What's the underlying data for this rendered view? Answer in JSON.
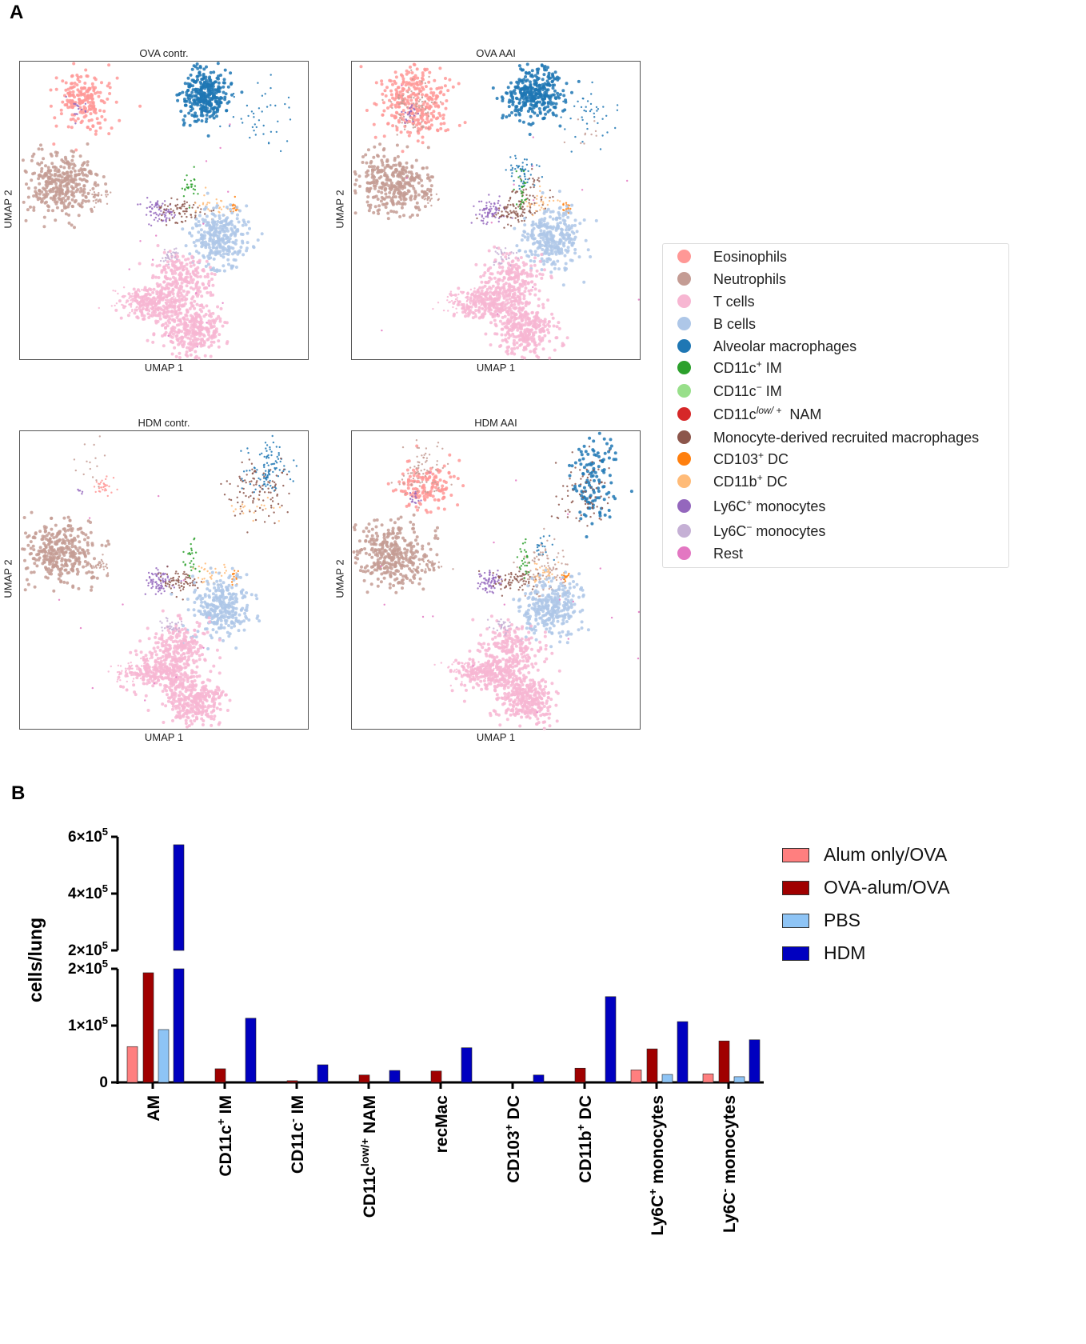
{
  "panel_a_label": "A",
  "panel_b_label": "B",
  "umap": {
    "xlabel": "UMAP 1",
    "ylabel": "UMAP 2",
    "panels": [
      {
        "title": "OVA contr."
      },
      {
        "title": "OVA AAI"
      },
      {
        "title": "HDM contr."
      },
      {
        "title": "HDM AAI"
      }
    ]
  },
  "legend_a": [
    {
      "base": "Eosinophils",
      "sup": "",
      "rest": "",
      "color": "#ff9896"
    },
    {
      "base": "Neutrophils",
      "sup": "",
      "rest": "",
      "color": "#c49c94"
    },
    {
      "base": "T cells",
      "sup": "",
      "rest": "",
      "color": "#f7b6d2"
    },
    {
      "base": "B cells",
      "sup": "",
      "rest": "",
      "color": "#aec7e8"
    },
    {
      "base": "Alveolar macrophages",
      "sup": "",
      "rest": "",
      "color": "#1f77b4"
    },
    {
      "base": "CD11c",
      "sup": "+",
      "rest": " IM",
      "color": "#2ca02c"
    },
    {
      "base": "CD11c",
      "sup": "−",
      "rest": " IM",
      "color": "#98df8a"
    },
    {
      "base": "CD11c",
      "sup": "low/ +",
      "rest": "  NAM",
      "color": "#d62728"
    },
    {
      "base": "Monocyte-derived recruited macrophages",
      "sup": "",
      "rest": "",
      "color": "#8c564b"
    },
    {
      "base": "CD103",
      "sup": "+",
      "rest": " DC",
      "color": "#ff7f0e"
    },
    {
      "base": "CD11b",
      "sup": "+",
      "rest": " DC",
      "color": "#ffbb78"
    },
    {
      "base": "Ly6C",
      "sup": "+",
      "rest": " monocytes",
      "color": "#9467bd"
    },
    {
      "base": "Ly6C",
      "sup": "−",
      "rest": " monocytes",
      "color": "#c5b0d5"
    },
    {
      "base": "Rest",
      "sup": "",
      "rest": "",
      "color": "#e377c2"
    }
  ],
  "chart_data": {
    "type": "bar",
    "ylabel": "cells/lung",
    "y_axis_break": true,
    "ylim_lower": [
      0,
      200000
    ],
    "ylim_upper": [
      200000,
      600000
    ],
    "yticks_lower": [
      {
        "v": 0,
        "base": "0",
        "exp": ""
      },
      {
        "v": 100000,
        "base": "1×10",
        "exp": "5"
      },
      {
        "v": 200000,
        "base": "2×10",
        "exp": "5"
      }
    ],
    "yticks_upper": [
      {
        "v": 200000,
        "base": "2×10",
        "exp": "5"
      },
      {
        "v": 400000,
        "base": "4×10",
        "exp": "5"
      },
      {
        "v": 600000,
        "base": "6×10",
        "exp": "5"
      }
    ],
    "categories": [
      {
        "base": "AM",
        "sup": "",
        "rest": ""
      },
      {
        "base": "CD11c",
        "sup": "+",
        "rest": " IM"
      },
      {
        "base": "CD11c",
        "sup": "-",
        "rest": " IM"
      },
      {
        "base": "CD11c",
        "sup": "low/+",
        "rest": " NAM"
      },
      {
        "base": "recMac",
        "sup": "",
        "rest": ""
      },
      {
        "base": "CD103",
        "sup": "+",
        "rest": " DC"
      },
      {
        "base": "CD11b",
        "sup": "+",
        "rest": " DC"
      },
      {
        "base": "Ly6C",
        "sup": "+",
        "rest": " monocytes"
      },
      {
        "base": "Ly6C",
        "sup": "-",
        "rest": " monocytes"
      }
    ],
    "series": [
      {
        "name": "Alum only/OVA",
        "color": "#ff7f7f",
        "values": [
          63000,
          0,
          0,
          0,
          0,
          0,
          0,
          22000,
          15000
        ]
      },
      {
        "name": "OVA-alum/OVA",
        "color": "#a00000",
        "values": [
          193000,
          24000,
          3000,
          13000,
          20000,
          0,
          25000,
          59000,
          73000
        ]
      },
      {
        "name": "PBS",
        "color": "#8ec4f5",
        "values": [
          93000,
          0,
          0,
          0,
          0,
          0,
          0,
          14000,
          10000
        ]
      },
      {
        "name": "HDM",
        "color": "#0000c0",
        "values": [
          572000,
          113000,
          31000,
          21000,
          61000,
          13000,
          151000,
          107000,
          75000
        ]
      }
    ]
  }
}
